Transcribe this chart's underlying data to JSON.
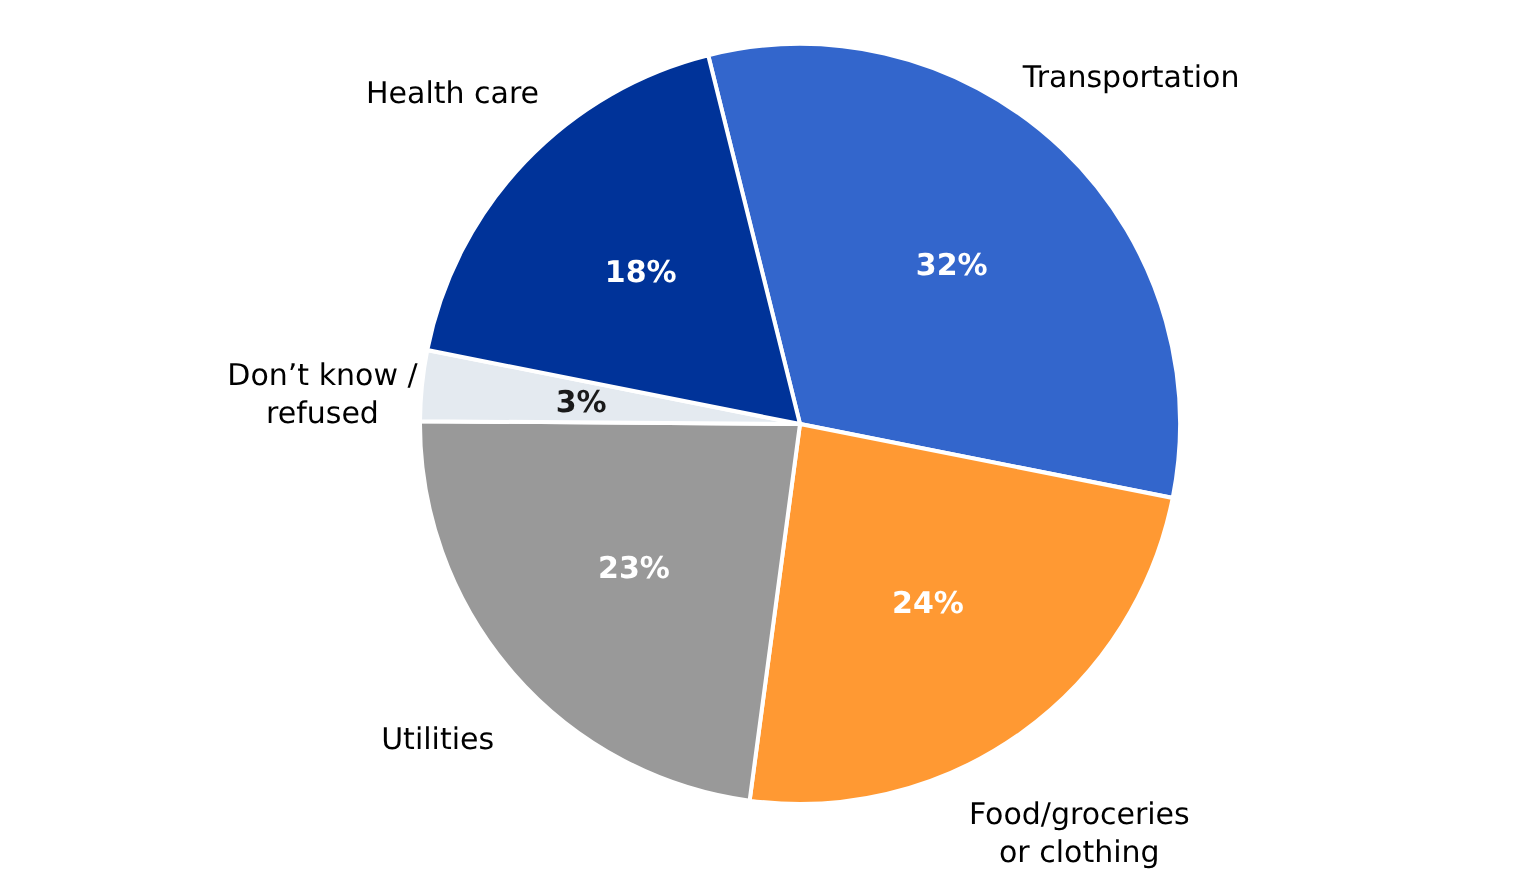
{
  "chart_data": {
    "type": "pie",
    "categories": [
      "Transportation",
      "Food/groceries or clothing",
      "Utilities",
      "Don’t know / refused",
      "Health care"
    ],
    "values": [
      32,
      24,
      23,
      3,
      18
    ],
    "colors": [
      "#3366cc",
      "#ff9933",
      "#999999",
      "#e4eaf0",
      "#003399"
    ],
    "value_labels": [
      "32%",
      "24%",
      "23%",
      "3%",
      "18%"
    ]
  }
}
